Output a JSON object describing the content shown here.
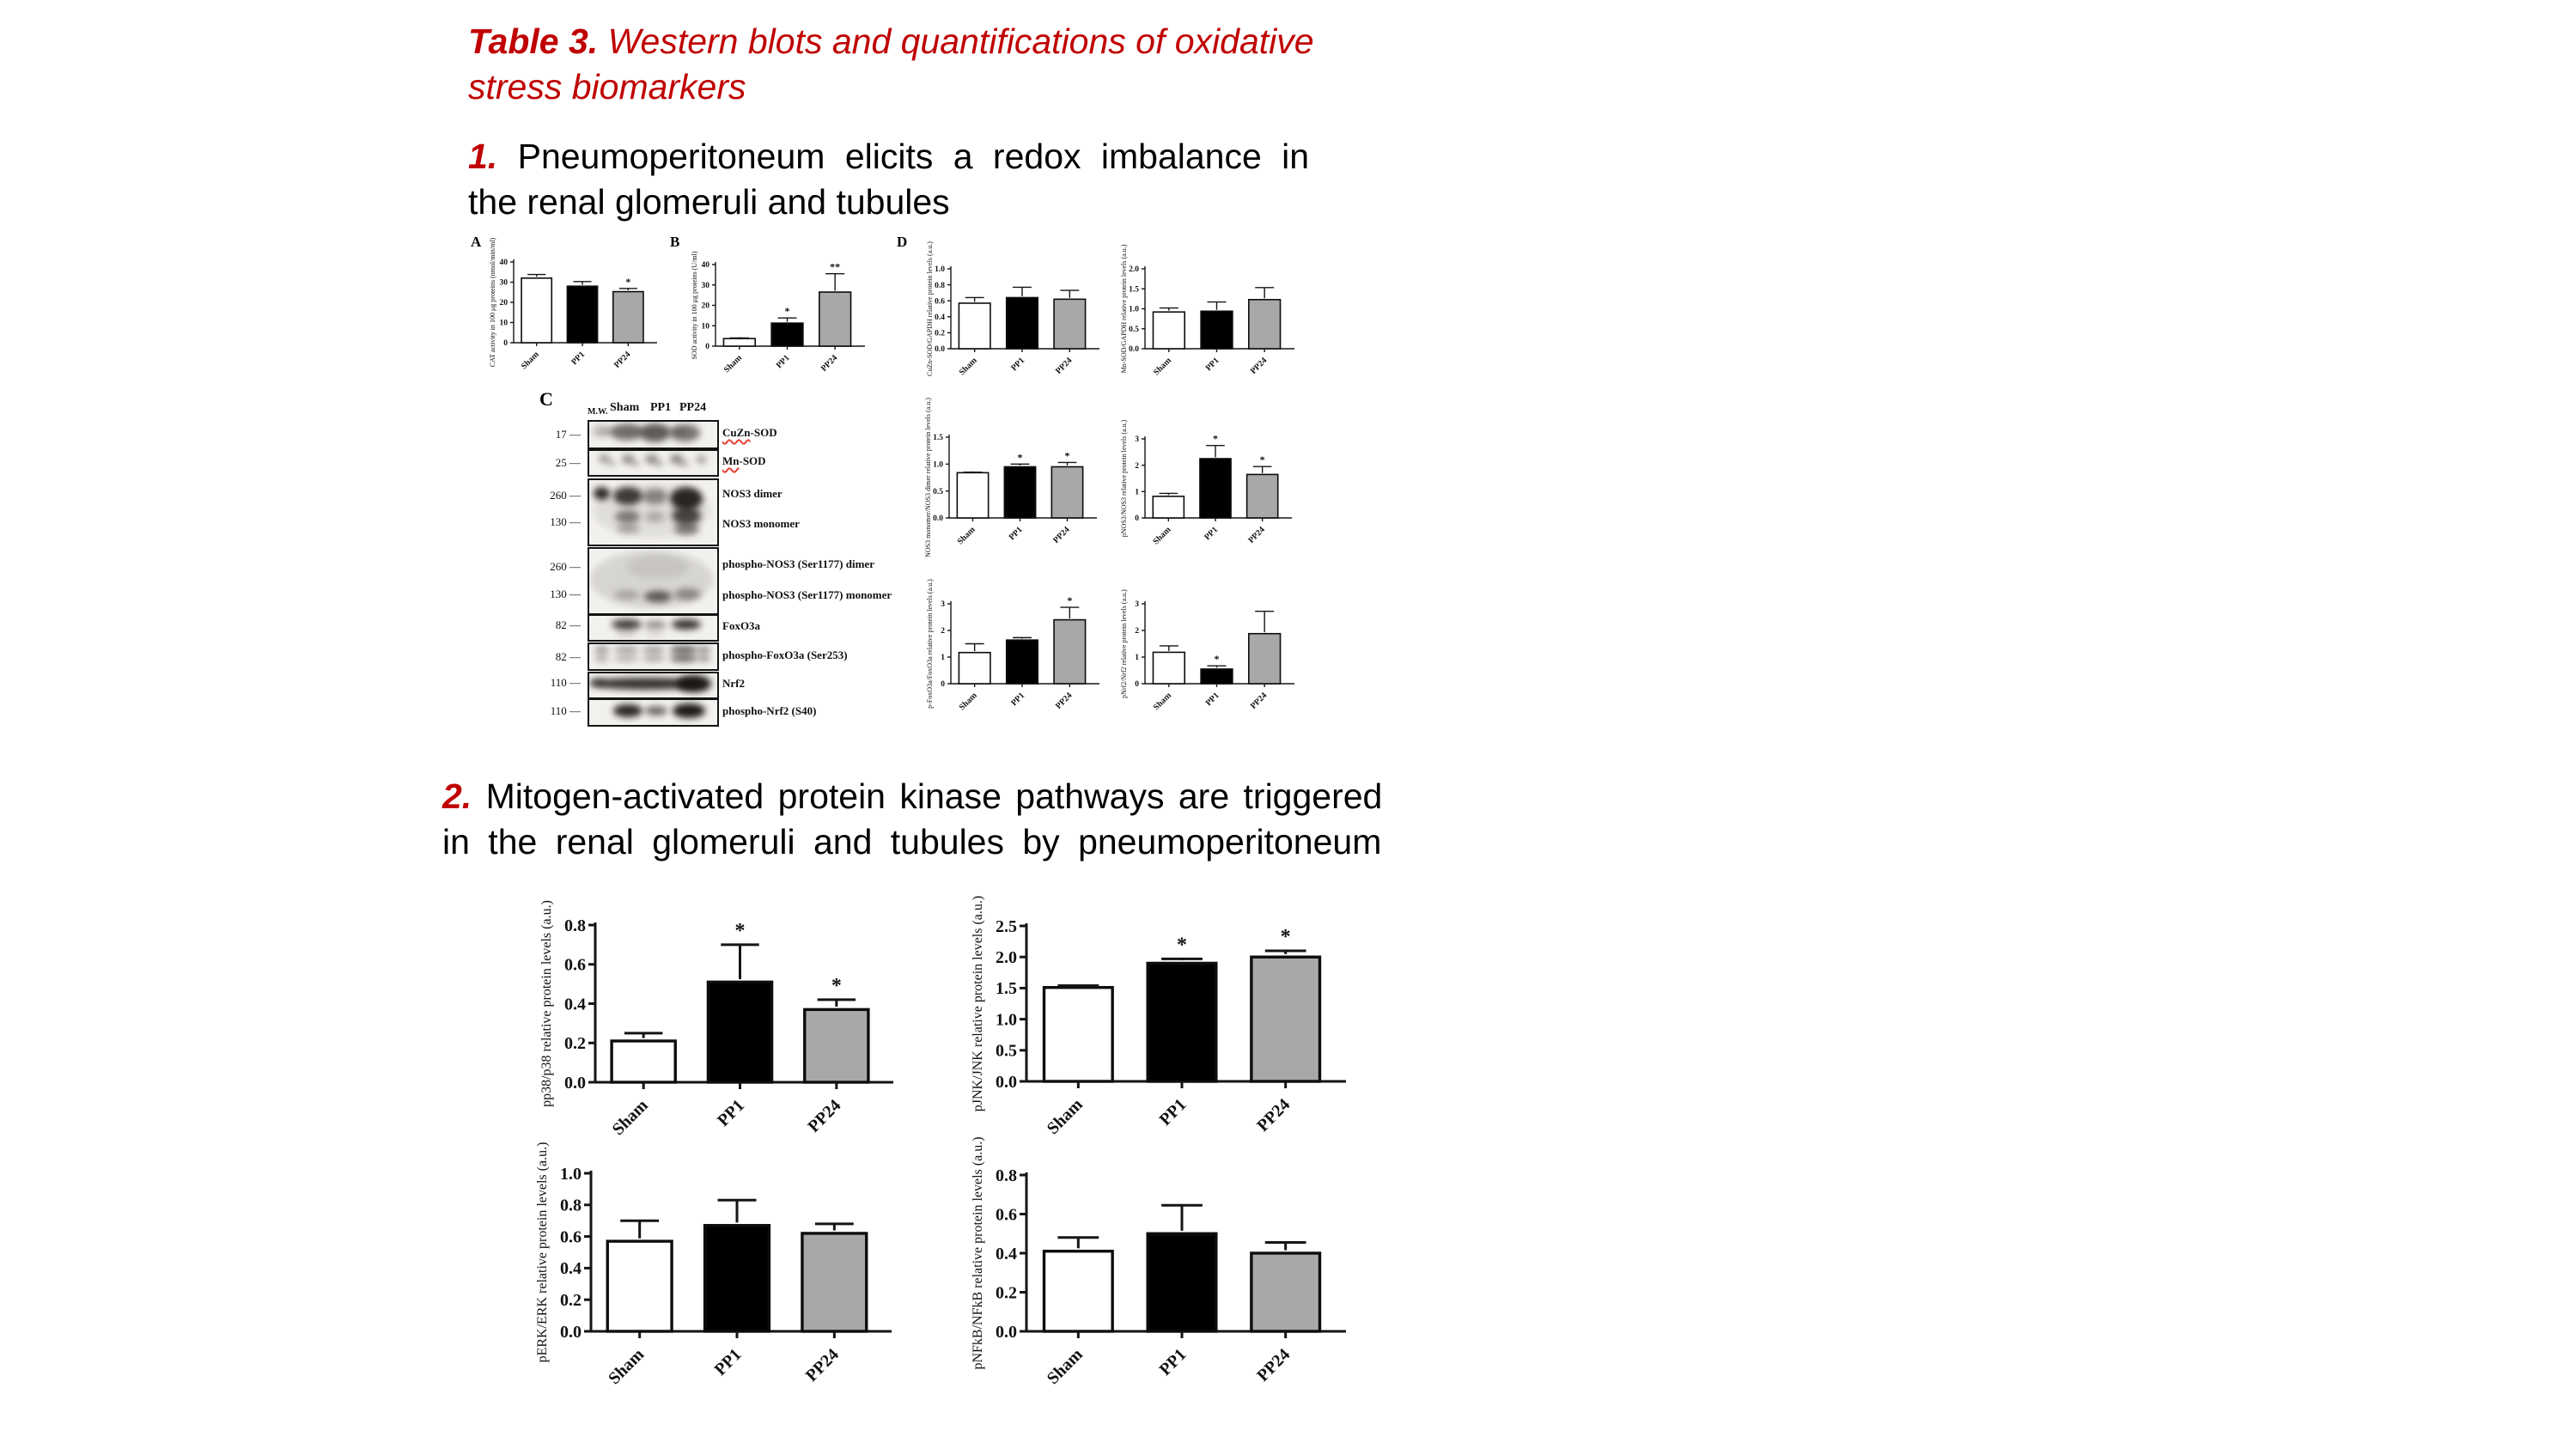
{
  "caption": {
    "label": "Table 3.",
    "lines": [
      "Western blots and quantifications of oxidative",
      "stress biomarkers"
    ]
  },
  "headings": [
    {
      "number": "1.",
      "lines": [
        "Pneumoperitoneum elicits a redox imbalance in",
        "the renal glomeruli and tubules"
      ]
    },
    {
      "number": "2.",
      "lines": [
        "Mitogen-activated protein kinase pathways are triggered",
        "in the renal glomeruli and tubules by pneumoperitoneum"
      ]
    }
  ],
  "panel_labels": [
    "A",
    "B",
    "C",
    "D"
  ],
  "categories": [
    "Sham",
    "PP1",
    "PP24"
  ],
  "colors": {
    "caption_red": "#c00000",
    "squiggle_red": "#e84033",
    "bar_fills": [
      "#ffffff",
      "#000000",
      "#a8a8a8"
    ]
  },
  "western_blot": {
    "mw_header": "M.W.",
    "lane_headers": [
      "Sham",
      "PP1",
      "PP24"
    ],
    "rows": [
      {
        "mw": [
          "17"
        ],
        "labels": [
          {
            "squiggle": "CuZn",
            "rest": "-SOD"
          }
        ]
      },
      {
        "mw": [
          "25"
        ],
        "labels": [
          {
            "squiggle": "Mn",
            "rest": "-SOD"
          }
        ]
      },
      {
        "mw": [
          "260",
          "130"
        ],
        "labels": [
          {
            "squiggle": "",
            "rest": "NOS3 dimer"
          },
          {
            "squiggle": "",
            "rest": "NOS3 monomer"
          }
        ]
      },
      {
        "mw": [
          "260",
          "130"
        ],
        "labels": [
          {
            "squiggle": "",
            "rest": "phospho-NOS3 (Ser1177) dimer"
          },
          {
            "squiggle": "",
            "rest": "phospho-NOS3 (Ser1177) monomer"
          }
        ]
      },
      {
        "mw": [
          "82"
        ],
        "labels": [
          {
            "squiggle": "",
            "rest": "FoxO3a"
          }
        ]
      },
      {
        "mw": [
          "82"
        ],
        "labels": [
          {
            "squiggle": "",
            "rest": "phospho-FoxO3a (Ser253)"
          }
        ]
      },
      {
        "mw": [
          "110"
        ],
        "labels": [
          {
            "squiggle": "",
            "rest": "Nrf2"
          }
        ]
      },
      {
        "mw": [
          "110"
        ],
        "labels": [
          {
            "squiggle": "",
            "rest": "phospho-Nrf2 (S40)"
          }
        ]
      }
    ]
  },
  "chart_data": [
    {
      "id": "A",
      "panel": "A",
      "type": "bar",
      "ylabel": "CAT activity in 100 μg proteins (nmol/min/ml)",
      "ylim": [
        0,
        40
      ],
      "yticks": {
        "labels": [
          "0",
          "10",
          "20",
          "30",
          "40"
        ],
        "values": [
          0,
          10,
          20,
          30,
          40
        ]
      },
      "categories": [
        "Sham",
        "PP1",
        "PP24"
      ],
      "values": [
        32,
        28,
        25.3
      ],
      "errors": [
        1.8,
        2.3,
        1.6
      ],
      "annotations": [
        "",
        "",
        "*"
      ]
    },
    {
      "id": "B",
      "panel": "B",
      "type": "bar",
      "ylabel": "SOD activity in 100 μg proteins (U/ml)",
      "ylim": [
        0,
        40
      ],
      "yticks": {
        "labels": [
          "0",
          "10",
          "20",
          "30",
          "40"
        ],
        "values": [
          0,
          10,
          20,
          30,
          40
        ]
      },
      "categories": [
        "Sham",
        "PP1",
        "PP24"
      ],
      "values": [
        3.7,
        11.3,
        26.5
      ],
      "errors": [
        0.3,
        2.5,
        9.0
      ],
      "annotations": [
        "",
        "*",
        "**"
      ]
    },
    {
      "id": "D1",
      "panel": "D",
      "type": "bar",
      "ylabel": "CuZn-SOD/GAPDH relative protein levels (a.u.)",
      "ylim": [
        0,
        1.0
      ],
      "yticks": {
        "labels": [
          "0.0",
          "0.2",
          "0.4",
          "0.6",
          "0.8",
          "1.0"
        ],
        "values": [
          0,
          0.2,
          0.4,
          0.6,
          0.8,
          1.0
        ]
      },
      "categories": [
        "Sham",
        "PP1",
        "PP24"
      ],
      "values": [
        0.57,
        0.64,
        0.62
      ],
      "errors": [
        0.07,
        0.13,
        0.11
      ],
      "annotations": [
        "",
        "",
        ""
      ]
    },
    {
      "id": "D2",
      "panel": "D",
      "type": "bar",
      "ylabel": "Mn-SOD/GAPDH relative protein levels (a.u.)",
      "ylim": [
        0,
        2.0
      ],
      "yticks": {
        "labels": [
          "0.0",
          "0.5",
          "1.0",
          "1.5",
          "2.0"
        ],
        "values": [
          0,
          0.5,
          1.0,
          1.5,
          2.0
        ]
      },
      "categories": [
        "Sham",
        "PP1",
        "PP24"
      ],
      "values": [
        0.92,
        0.94,
        1.23
      ],
      "errors": [
        0.1,
        0.23,
        0.3
      ],
      "annotations": [
        "",
        "",
        ""
      ]
    },
    {
      "id": "D3",
      "panel": "D",
      "type": "bar",
      "ylabel": "NOS3 monomer/NOS3 dimer relative protein levels (a.u.)",
      "ylim": [
        0,
        1.5
      ],
      "yticks": {
        "labels": [
          "0.0",
          "0.5",
          "1.0",
          "1.5"
        ],
        "values": [
          0,
          0.5,
          1.0,
          1.5
        ]
      },
      "categories": [
        "Sham",
        "PP1",
        "PP24"
      ],
      "values": [
        0.84,
        0.95,
        0.95
      ],
      "errors": [
        0.01,
        0.05,
        0.08
      ],
      "annotations": [
        "",
        "*",
        "*"
      ]
    },
    {
      "id": "D4",
      "panel": "D",
      "type": "bar",
      "ylabel": "pNOS3/NOS3 relative protein levels (a.u.)",
      "ylim": [
        0,
        3
      ],
      "yticks": {
        "labels": [
          "0",
          "1",
          "2",
          "3"
        ],
        "values": [
          0,
          1,
          2,
          3
        ]
      },
      "categories": [
        "Sham",
        "PP1",
        "PP24"
      ],
      "values": [
        0.82,
        2.25,
        1.65
      ],
      "errors": [
        0.11,
        0.5,
        0.3
      ],
      "annotations": [
        "",
        "*",
        "*"
      ]
    },
    {
      "id": "D5",
      "panel": "D",
      "type": "bar",
      "ylabel": "p-FoxO3a/FoxO3a relative protein levels (a.u.)",
      "ylim": [
        0,
        3
      ],
      "yticks": {
        "labels": [
          "0",
          "1",
          "2",
          "3"
        ],
        "values": [
          0,
          1,
          2,
          3
        ]
      },
      "categories": [
        "Sham",
        "PP1",
        "PP24"
      ],
      "values": [
        1.17,
        1.64,
        2.4
      ],
      "errors": [
        0.33,
        0.09,
        0.47
      ],
      "annotations": [
        "",
        "",
        "*"
      ]
    },
    {
      "id": "D6",
      "panel": "D",
      "type": "bar",
      "ylabel": "pNrf2/Nrf2 relative protein levels (a.u.)",
      "ylim": [
        0,
        3
      ],
      "yticks": {
        "labels": [
          "0",
          "1",
          "2",
          "3"
        ],
        "values": [
          0,
          1,
          2,
          3
        ]
      },
      "categories": [
        "Sham",
        "PP1",
        "PP24"
      ],
      "values": [
        1.18,
        0.55,
        1.88
      ],
      "errors": [
        0.24,
        0.12,
        0.84
      ],
      "annotations": [
        "",
        "*",
        ""
      ]
    },
    {
      "id": "S1",
      "panel": "2",
      "type": "bar",
      "ylabel": "pp38/p38 relative protein levels (a.u.)",
      "ylim": [
        0,
        0.8
      ],
      "yticks": {
        "labels": [
          "0.0",
          "0.2",
          "0.4",
          "0.6",
          "0.8"
        ],
        "values": [
          0,
          0.2,
          0.4,
          0.6,
          0.8
        ]
      },
      "categories": [
        "Sham",
        "PP1",
        "PP24"
      ],
      "values": [
        0.21,
        0.51,
        0.37
      ],
      "errors": [
        0.04,
        0.19,
        0.05
      ],
      "annotations": [
        "",
        "*",
        "*"
      ]
    },
    {
      "id": "S2",
      "panel": "2",
      "type": "bar",
      "ylabel": "pJNK/JNK relative protein levels (a.u.)",
      "ylim": [
        0,
        2.5
      ],
      "yticks": {
        "labels": [
          "0.0",
          "0.5",
          "1.0",
          "1.5",
          "2.0",
          "2.5"
        ],
        "values": [
          0,
          0.5,
          1.0,
          1.5,
          2.0,
          2.5
        ]
      },
      "categories": [
        "Sham",
        "PP1",
        "PP24"
      ],
      "values": [
        1.51,
        1.9,
        2.0
      ],
      "errors": [
        0.03,
        0.07,
        0.1
      ],
      "annotations": [
        "",
        "*",
        "*"
      ]
    },
    {
      "id": "S3",
      "panel": "2",
      "type": "bar",
      "ylabel": "pERK/ERK relative protein levels (a.u.)",
      "ylim": [
        0,
        1.0
      ],
      "yticks": {
        "labels": [
          "0.0",
          "0.2",
          "0.4",
          "0.6",
          "0.8",
          "1.0"
        ],
        "values": [
          0,
          0.2,
          0.4,
          0.6,
          0.8,
          1.0
        ]
      },
      "categories": [
        "Sham",
        "PP1",
        "PP24"
      ],
      "values": [
        0.57,
        0.67,
        0.62
      ],
      "errors": [
        0.13,
        0.16,
        0.06
      ],
      "annotations": [
        "",
        "",
        ""
      ]
    },
    {
      "id": "S4",
      "panel": "2",
      "type": "bar",
      "ylabel": "pNFkB/NFkB relative protein levels (a.u.)",
      "ylim": [
        0,
        0.8
      ],
      "yticks": {
        "labels": [
          "0.0",
          "0.2",
          "0.4",
          "0.6",
          "0.8"
        ],
        "values": [
          0,
          0.2,
          0.4,
          0.6,
          0.8
        ]
      },
      "categories": [
        "Sham",
        "PP1",
        "PP24"
      ],
      "values": [
        0.41,
        0.5,
        0.4
      ],
      "errors": [
        0.07,
        0.145,
        0.055
      ],
      "annotations": [
        "",
        "",
        ""
      ]
    }
  ]
}
